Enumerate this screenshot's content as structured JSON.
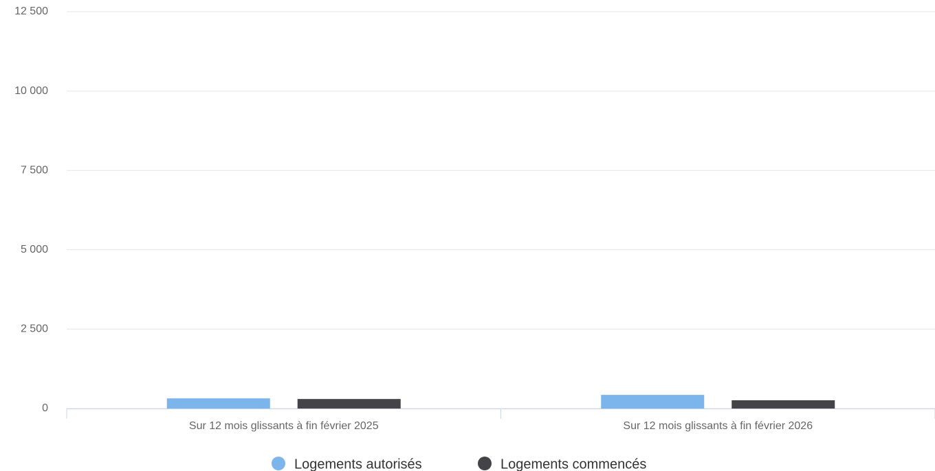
{
  "chart_data": {
    "type": "bar",
    "categories": [
      "Sur 12 mois glissants à fin février 2025",
      "Sur 12 mois glissants à fin février 2026"
    ],
    "series": [
      {
        "name": "Logements autorisés",
        "color": "#7cb5ec",
        "values": [
          320,
          430
        ]
      },
      {
        "name": "Logements commencés",
        "color": "#434348",
        "values": [
          300,
          260
        ]
      }
    ],
    "ylim": [
      0,
      12500
    ],
    "yticks": [
      0,
      {
        "value": 2500,
        "label": "2 500"
      },
      {
        "value": 5000,
        "label": "5 000"
      },
      {
        "value": 7500,
        "label": "7 500"
      },
      {
        "value": 10000,
        "label": "10 000"
      },
      {
        "value": 12500,
        "label": "12 500"
      }
    ],
    "grid": true
  }
}
